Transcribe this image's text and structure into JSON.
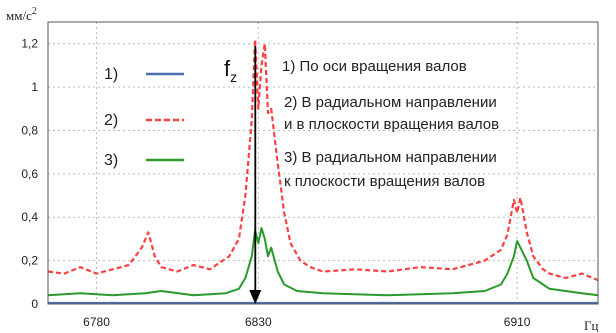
{
  "chart_data": {
    "type": "line",
    "y_unit_text": "мм/с",
    "y_unit_power": "2",
    "x_unit_text": "Гц",
    "xlim": [
      6765,
      6935
    ],
    "ylim": [
      0,
      1.3
    ],
    "x_ticks": [
      6780,
      6830,
      6910
    ],
    "x_tick_labels": [
      "6780",
      "6830",
      "6910"
    ],
    "y_ticks": [
      0,
      0.2,
      0.4,
      0.6,
      0.8,
      1.0,
      1.2
    ],
    "y_tick_labels": [
      "0",
      "0,2",
      "0,4",
      "0,6",
      "0,8",
      "1",
      "1,2"
    ],
    "grid": true,
    "annotation": {
      "main": "f",
      "sub": "z",
      "x": 6830
    },
    "series": [
      {
        "label": "1)",
        "description": [
          "1) По оси вращения валов"
        ],
        "color": "#4a6fb0",
        "style": "solid",
        "x": [
          6765,
          6935
        ],
        "y": [
          0.005,
          0.005
        ]
      },
      {
        "label": "2)",
        "description": [
          "2) В радиальном направлении",
          "и в плоскости вращения валов"
        ],
        "color": "#ff4040",
        "style": "dashed",
        "x": [
          6765,
          6770,
          6775,
          6780,
          6785,
          6790,
          6794,
          6796,
          6798,
          6800,
          6805,
          6810,
          6815,
          6818,
          6821,
          6824,
          6826,
          6828,
          6829,
          6830,
          6831,
          6832,
          6833,
          6834,
          6836,
          6838,
          6840,
          6843,
          6846,
          6850,
          6860,
          6870,
          6880,
          6890,
          6895,
          6900,
          6905,
          6907,
          6909,
          6910,
          6911,
          6913,
          6915,
          6918,
          6920,
          6925,
          6930,
          6935
        ],
        "y": [
          0.15,
          0.14,
          0.17,
          0.14,
          0.16,
          0.18,
          0.26,
          0.33,
          0.22,
          0.17,
          0.15,
          0.18,
          0.16,
          0.19,
          0.22,
          0.3,
          0.5,
          0.85,
          1.22,
          0.9,
          1.1,
          1.2,
          0.88,
          0.9,
          0.65,
          0.42,
          0.28,
          0.2,
          0.17,
          0.15,
          0.16,
          0.15,
          0.17,
          0.16,
          0.18,
          0.2,
          0.25,
          0.32,
          0.48,
          0.42,
          0.49,
          0.33,
          0.22,
          0.16,
          0.14,
          0.12,
          0.14,
          0.11
        ]
      },
      {
        "label": "3)",
        "description": [
          "3) В радиальном направлении",
          "к плоскости вращения валов"
        ],
        "color": "#2a9a2a",
        "style": "solid",
        "x": [
          6765,
          6775,
          6785,
          6795,
          6800,
          6810,
          6820,
          6824,
          6826,
          6828,
          6829,
          6830,
          6831,
          6832,
          6833,
          6834,
          6836,
          6838,
          6842,
          6850,
          6870,
          6890,
          6900,
          6905,
          6907,
          6909,
          6910,
          6911,
          6913,
          6915,
          6920,
          6930,
          6935
        ],
        "y": [
          0.04,
          0.05,
          0.04,
          0.05,
          0.06,
          0.04,
          0.05,
          0.07,
          0.12,
          0.22,
          0.34,
          0.28,
          0.35,
          0.3,
          0.22,
          0.26,
          0.15,
          0.09,
          0.06,
          0.05,
          0.04,
          0.05,
          0.06,
          0.09,
          0.14,
          0.22,
          0.29,
          0.26,
          0.2,
          0.12,
          0.07,
          0.05,
          0.04
        ]
      }
    ]
  }
}
